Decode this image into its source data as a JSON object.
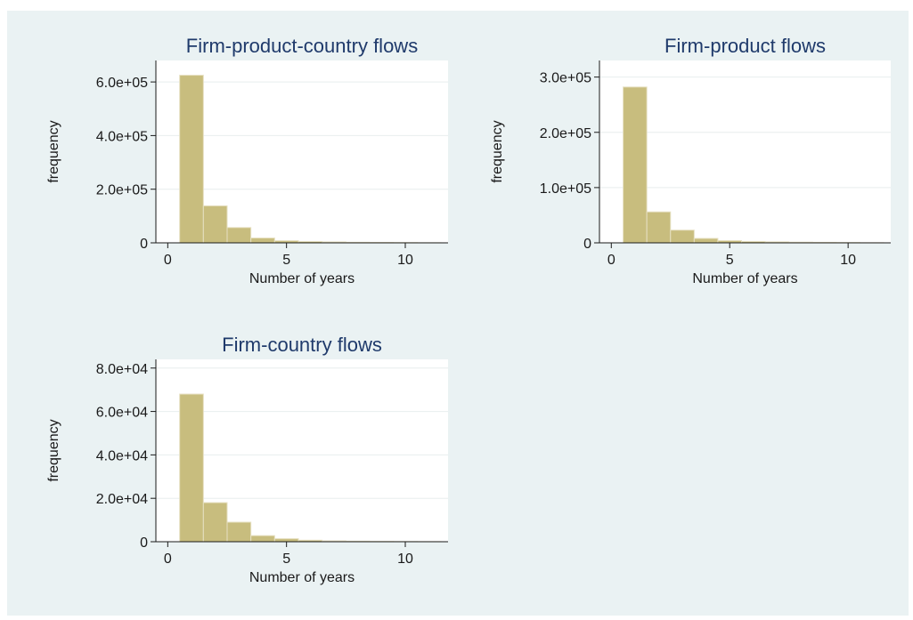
{
  "colors": {
    "background": "#eaf2f3",
    "plot_region": "#ffffff",
    "bar_fill": "#c8bd7e",
    "bar_edge": "#e6e0c2",
    "gridline": "#e8eeee",
    "axis": "#1a1a1a"
  },
  "chart_data": [
    {
      "type": "bar",
      "title": "Firm-product-country flows",
      "xlabel": "Number of years",
      "ylabel": "frequency",
      "xlim": [
        -0.5,
        11.8
      ],
      "ylim": [
        0,
        680000
      ],
      "xticks": [
        "0",
        "5",
        "10"
      ],
      "yticks": [
        "0",
        "2.0e+05",
        "4.0e+05",
        "6.0e+05"
      ],
      "grid": true,
      "x": [
        1,
        2,
        3,
        4,
        5,
        6,
        7,
        8,
        9,
        10,
        11
      ],
      "values": [
        625000,
        138000,
        57000,
        18000,
        8000,
        5000,
        3500,
        2000,
        1500,
        1000,
        500
      ]
    },
    {
      "type": "bar",
      "title": "Firm-product flows",
      "xlabel": "Number of years",
      "ylabel": "frequency",
      "xlim": [
        -0.5,
        11.8
      ],
      "ylim": [
        0,
        330000
      ],
      "xticks": [
        "0",
        "5",
        "10"
      ],
      "yticks": [
        "0",
        "1.0e+05",
        "2.0e+05",
        "3.0e+05"
      ],
      "grid": true,
      "x": [
        1,
        2,
        3,
        4,
        5,
        6,
        7,
        8,
        9,
        10,
        11
      ],
      "values": [
        282000,
        56000,
        23000,
        8000,
        4000,
        2500,
        1800,
        1200,
        900,
        600,
        300
      ]
    },
    {
      "type": "bar",
      "title": "Firm-country flows",
      "xlabel": "Number of years",
      "ylabel": "frequency",
      "xlim": [
        -0.5,
        11.8
      ],
      "ylim": [
        0,
        84000
      ],
      "xticks": [
        "0",
        "5",
        "10"
      ],
      "yticks": [
        "0",
        "2.0e+04",
        "4.0e+04",
        "6.0e+04",
        "8.0e+04"
      ],
      "grid": true,
      "x": [
        1,
        2,
        3,
        4,
        5,
        6,
        7,
        8,
        9,
        10,
        11
      ],
      "values": [
        68000,
        18000,
        9000,
        2800,
        1400,
        700,
        400,
        250,
        150,
        100,
        60
      ]
    }
  ]
}
